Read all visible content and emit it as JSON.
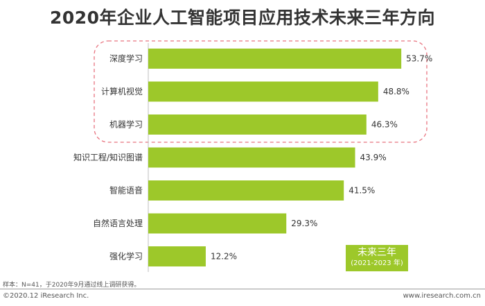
{
  "title": "2020年企业人工智能项目应用技术未来三年方向",
  "chart_data": {
    "type": "bar",
    "orientation": "horizontal",
    "categories": [
      "深度学习",
      "计算机视觉",
      "机器学习",
      "知识工程/知识图谱",
      "智能语音",
      "自然语言处理",
      "强化学习"
    ],
    "values": [
      53.7,
      48.8,
      46.3,
      43.9,
      41.5,
      29.3,
      12.2
    ],
    "value_labels": [
      "53.7%",
      "48.8%",
      "46.3%",
      "43.9%",
      "41.5%",
      "29.3%",
      "12.2%"
    ],
    "unit": "%",
    "xlim": [
      0,
      60
    ],
    "bar_color": "#9dc82a",
    "highlight_color": "#e8737f",
    "highlighted_categories": [
      "深度学习",
      "计算机视觉",
      "机器学习"
    ],
    "grid": false,
    "legend": {
      "label": "未来三年",
      "sublabel": "(2021-2023 年)",
      "color": "#9dc82a",
      "position": "bottom-right"
    }
  },
  "footer": {
    "note": "样本：N=41，于2020年9月通过线上调研获得。",
    "copyright": "©2020.12 iResearch Inc.",
    "website": "www.iresearch.com.cn"
  }
}
